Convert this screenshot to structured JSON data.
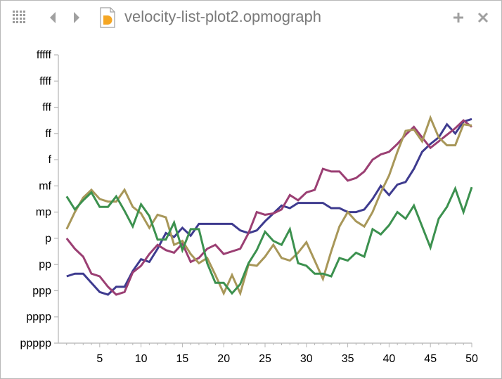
{
  "window": {
    "title": "velocity-list-plot2.opmograph",
    "icons": [
      "grid-icon",
      "back-arrow-icon",
      "forward-arrow-icon",
      "document-icon",
      "add-icon",
      "close-icon"
    ]
  },
  "colors": {
    "axis": "#b5b5b5",
    "icon": "#9a9a9a",
    "series": [
      "#3e3b8f",
      "#9b3f73",
      "#a89759",
      "#3c914f"
    ]
  },
  "chart_data": {
    "type": "line",
    "title": "",
    "xlabel": "",
    "ylabel": "",
    "xlim": [
      0,
      50
    ],
    "ylim": [
      0,
      11
    ],
    "x_ticks": [
      5,
      10,
      15,
      20,
      25,
      30,
      35,
      40,
      45,
      50
    ],
    "y_ticks": [
      {
        "value": 0,
        "label": "ppppp"
      },
      {
        "value": 1,
        "label": "pppp"
      },
      {
        "value": 2,
        "label": "ppp"
      },
      {
        "value": 3,
        "label": "pp"
      },
      {
        "value": 4,
        "label": "p"
      },
      {
        "value": 5,
        "label": "mp"
      },
      {
        "value": 6,
        "label": "mf"
      },
      {
        "value": 7,
        "label": "f"
      },
      {
        "value": 8,
        "label": "ff"
      },
      {
        "value": 9,
        "label": "fff"
      },
      {
        "value": 10,
        "label": "ffff"
      },
      {
        "value": 11,
        "label": "fffff"
      }
    ],
    "x": [
      1,
      2,
      3,
      4,
      5,
      6,
      7,
      8,
      9,
      10,
      11,
      12,
      13,
      14,
      15,
      16,
      17,
      18,
      19,
      20,
      21,
      22,
      23,
      24,
      25,
      26,
      27,
      28,
      29,
      30,
      31,
      32,
      33,
      34,
      35,
      36,
      37,
      38,
      39,
      40,
      41,
      42,
      43,
      44,
      45,
      46,
      47,
      48,
      49,
      50
    ],
    "series": [
      {
        "values": [
          2.55,
          2.65,
          2.65,
          2.3,
          1.95,
          1.85,
          2.15,
          2.15,
          2.75,
          3.2,
          3.1,
          3.6,
          4.2,
          4.05,
          4.4,
          4.1,
          4.55,
          4.55,
          4.55,
          4.55,
          4.55,
          4.3,
          4.2,
          4.3,
          4.65,
          4.95,
          5.25,
          5.15,
          5.35,
          5.35,
          5.35,
          5.35,
          5.15,
          5.15,
          5.0,
          5.0,
          5.1,
          5.5,
          6.0,
          5.65,
          6.05,
          6.15,
          6.65,
          7.3,
          7.6,
          7.85,
          8.35,
          8.0,
          8.45,
          8.55
        ]
      },
      {
        "values": [
          4.0,
          3.6,
          3.3,
          2.65,
          2.55,
          2.15,
          1.85,
          1.95,
          2.7,
          2.95,
          3.4,
          3.75,
          3.55,
          3.45,
          3.8,
          3.1,
          3.25,
          3.6,
          3.75,
          3.4,
          3.5,
          3.6,
          4.2,
          5.0,
          4.9,
          4.95,
          5.1,
          5.65,
          5.45,
          5.75,
          5.85,
          6.65,
          6.55,
          6.55,
          6.2,
          6.3,
          6.55,
          7.0,
          7.2,
          7.3,
          7.6,
          7.95,
          8.25,
          7.85,
          7.45,
          7.7,
          7.95,
          8.2,
          8.5,
          8.25
        ]
      },
      {
        "values": [
          4.35,
          5.0,
          5.55,
          5.85,
          5.5,
          5.4,
          5.4,
          5.85,
          5.2,
          4.95,
          4.4,
          4.9,
          4.8,
          3.75,
          3.9,
          3.4,
          3.05,
          3.25,
          2.6,
          1.9,
          2.6,
          1.9,
          3.0,
          2.95,
          3.3,
          3.75,
          3.25,
          3.15,
          3.45,
          3.85,
          3.15,
          2.45,
          3.5,
          4.45,
          5.0,
          4.65,
          4.45,
          5.0,
          5.75,
          6.4,
          7.3,
          8.1,
          8.15,
          7.7,
          8.6,
          7.85,
          7.55,
          7.55,
          8.35,
          8.3
        ]
      },
      {
        "values": [
          5.6,
          5.1,
          5.45,
          5.75,
          5.2,
          5.2,
          5.6,
          5.05,
          4.45,
          5.3,
          4.85,
          3.95,
          3.95,
          4.6,
          3.55,
          4.35,
          4.35,
          3.05,
          2.3,
          2.3,
          1.9,
          2.25,
          3.05,
          3.55,
          4.25,
          3.9,
          3.75,
          4.35,
          3.05,
          2.95,
          2.65,
          2.65,
          2.55,
          3.25,
          3.15,
          3.45,
          3.3,
          4.35,
          4.15,
          4.5,
          5.0,
          4.75,
          5.25,
          4.45,
          3.65,
          4.75,
          5.2,
          5.9,
          5.0,
          5.95
        ]
      }
    ]
  }
}
